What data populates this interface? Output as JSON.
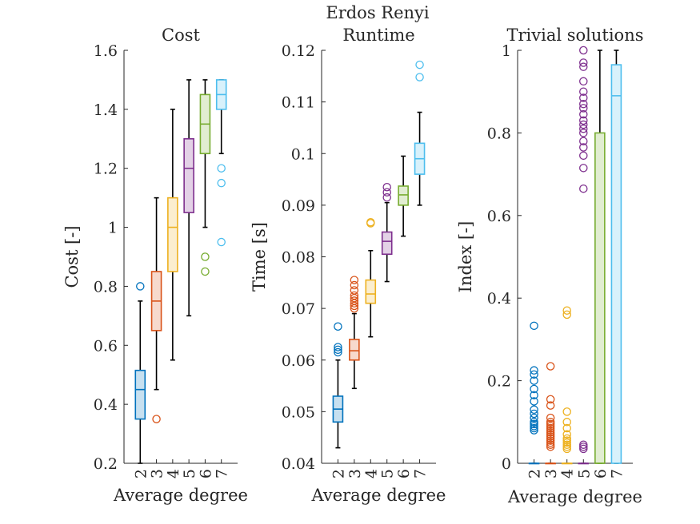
{
  "figure_title": "Erdos Renyi",
  "colors": [
    "#0072BD",
    "#D95319",
    "#EDB120",
    "#7E2F8E",
    "#77AC30",
    "#4DBEEE"
  ],
  "chart_data": [
    {
      "type": "box",
      "title": "Cost",
      "xlabel": "Average degree",
      "ylabel": "Cost [-]",
      "ylim": [
        0.2,
        1.6
      ],
      "yticks": [
        "0.2",
        "0.4",
        "0.6",
        "0.8",
        "1",
        "1.2",
        "1.4",
        "1.6"
      ],
      "categories": [
        "2",
        "3",
        "4",
        "5",
        "6",
        "7"
      ],
      "boxes": [
        {
          "min": 0.2,
          "q1": 0.35,
          "median": 0.45,
          "q3": 0.515,
          "max": 0.75,
          "outliers": [
            0.8
          ]
        },
        {
          "min": 0.45,
          "q1": 0.65,
          "median": 0.75,
          "q3": 0.85,
          "max": 1.1,
          "outliers": [
            0.35
          ]
        },
        {
          "min": 0.55,
          "q1": 0.85,
          "median": 1.0,
          "q3": 1.1,
          "max": 1.4,
          "outliers": []
        },
        {
          "min": 0.7,
          "q1": 1.05,
          "median": 1.2,
          "q3": 1.3,
          "max": 1.5,
          "outliers": []
        },
        {
          "min": 1.0,
          "q1": 1.25,
          "median": 1.35,
          "q3": 1.45,
          "max": 1.5,
          "outliers": [
            0.85,
            0.9
          ]
        },
        {
          "min": 1.25,
          "q1": 1.4,
          "median": 1.45,
          "q3": 1.5,
          "max": 1.5,
          "outliers": [
            0.95,
            1.15,
            1.2
          ]
        }
      ]
    },
    {
      "type": "box",
      "title": "Runtime",
      "xlabel": "Average degree",
      "ylabel": "Time [s]",
      "ylim": [
        0.04,
        0.12
      ],
      "yticks": [
        "0.04",
        "0.05",
        "0.06",
        "0.07",
        "0.08",
        "0.09",
        "0.1",
        "0.11",
        "0.12"
      ],
      "categories": [
        "2",
        "3",
        "4",
        "5",
        "6",
        "7"
      ],
      "boxes": [
        {
          "min": 0.043,
          "q1": 0.048,
          "median": 0.0505,
          "q3": 0.053,
          "max": 0.06,
          "outliers": [
            0.0615,
            0.062,
            0.0625,
            0.0665
          ]
        },
        {
          "min": 0.0545,
          "q1": 0.06,
          "median": 0.0618,
          "q3": 0.064,
          "max": 0.069,
          "outliers": [
            0.07,
            0.0705,
            0.071,
            0.0715,
            0.072,
            0.0725,
            0.0735,
            0.0745,
            0.0755
          ]
        },
        {
          "min": 0.0645,
          "q1": 0.071,
          "median": 0.0728,
          "q3": 0.0755,
          "max": 0.0812,
          "outliers": [
            0.0865,
            0.0867
          ]
        },
        {
          "min": 0.0752,
          "q1": 0.0805,
          "median": 0.083,
          "q3": 0.0848,
          "max": 0.0905,
          "outliers": [
            0.0915,
            0.0925,
            0.0935
          ]
        },
        {
          "min": 0.084,
          "q1": 0.09,
          "median": 0.092,
          "q3": 0.0937,
          "max": 0.0995,
          "outliers": []
        },
        {
          "min": 0.09,
          "q1": 0.096,
          "median": 0.099,
          "q3": 0.102,
          "max": 0.108,
          "outliers": [
            0.1148,
            0.1172
          ]
        }
      ]
    },
    {
      "type": "box",
      "title": "Trivial solutions",
      "xlabel": "Average degree",
      "ylabel": "Index [-]",
      "ylim": [
        0,
        1
      ],
      "yticks": [
        "0",
        "0.2",
        "0.4",
        "0.6",
        "0.8",
        "1"
      ],
      "categories": [
        "2",
        "3",
        "4",
        "5",
        "6",
        "7"
      ],
      "boxes": [
        {
          "min": 0,
          "q1": 0,
          "median": 0,
          "q3": 0,
          "max": 0,
          "outliers": [
            0.08,
            0.085,
            0.09,
            0.095,
            0.1,
            0.11,
            0.12,
            0.13,
            0.15,
            0.165,
            0.18,
            0.2,
            0.215,
            0.225,
            0.333
          ]
        },
        {
          "min": 0,
          "q1": 0,
          "median": 0,
          "q3": 0,
          "max": 0,
          "outliers": [
            0.04,
            0.045,
            0.05,
            0.055,
            0.06,
            0.065,
            0.07,
            0.075,
            0.08,
            0.085,
            0.09,
            0.095,
            0.1,
            0.11,
            0.14,
            0.155,
            0.235
          ]
        },
        {
          "min": 0,
          "q1": 0,
          "median": 0,
          "q3": 0,
          "max": 0,
          "outliers": [
            0.035,
            0.04,
            0.045,
            0.05,
            0.055,
            0.06,
            0.07,
            0.085,
            0.1,
            0.125,
            0.36,
            0.37
          ]
        },
        {
          "min": 0,
          "q1": 0,
          "median": 0,
          "q3": 0,
          "max": 0,
          "outliers": [
            0.035,
            0.04,
            0.045,
            0.665,
            0.715,
            0.745,
            0.765,
            0.78,
            0.8,
            0.81,
            0.82,
            0.83,
            0.845,
            0.86,
            0.87,
            0.885,
            0.9,
            0.925,
            0.96,
            0.97,
            1.0
          ]
        },
        {
          "min": 0,
          "q1": 0,
          "median": 0,
          "q3": 0.8,
          "max": 1.0,
          "outliers": []
        },
        {
          "min": 0,
          "q1": 0,
          "median": 0.89,
          "q3": 0.965,
          "max": 1.0,
          "outliers": []
        }
      ]
    }
  ]
}
